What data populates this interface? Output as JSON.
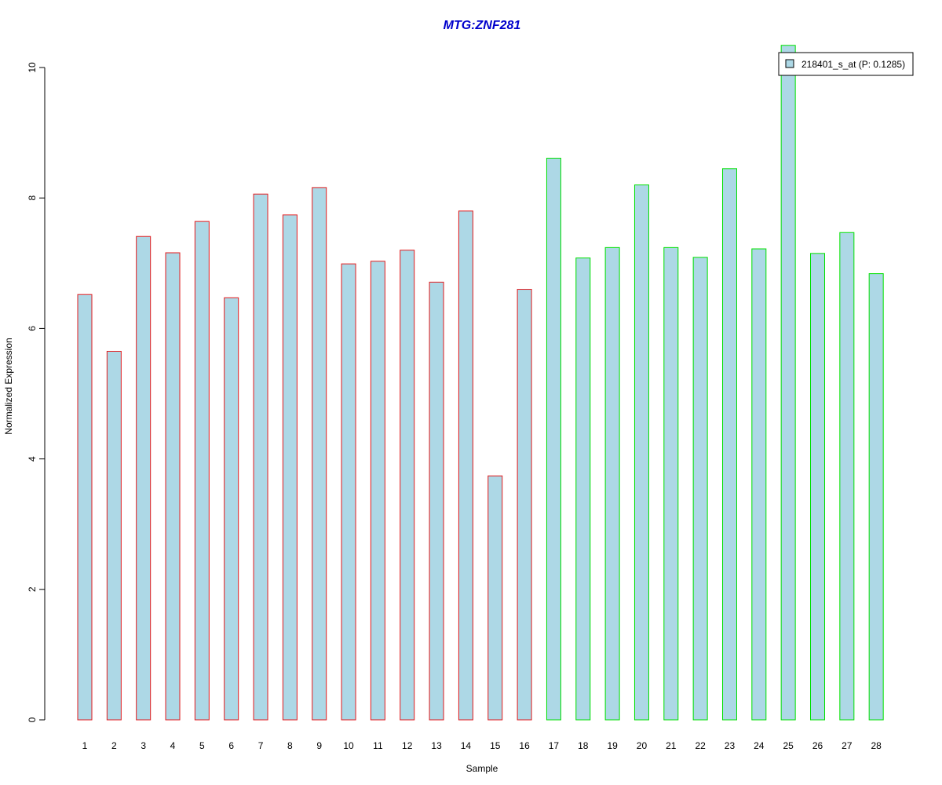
{
  "chart_data": {
    "type": "bar",
    "title": "MTG:ZNF281",
    "xlabel": "Sample",
    "ylabel": "Normalized Expression",
    "ylim": [
      0,
      10
    ],
    "yticks": [
      0,
      2,
      4,
      6,
      8,
      10
    ],
    "categories": [
      "1",
      "2",
      "3",
      "4",
      "5",
      "6",
      "7",
      "8",
      "9",
      "10",
      "11",
      "12",
      "13",
      "14",
      "15",
      "16",
      "17",
      "18",
      "19",
      "20",
      "21",
      "22",
      "23",
      "24",
      "25",
      "26",
      "27",
      "28"
    ],
    "series": [
      {
        "name": "218401_s_at (P: 0.1285)",
        "values": [
          6.52,
          5.65,
          7.41,
          7.16,
          7.64,
          6.47,
          8.06,
          7.74,
          8.16,
          6.99,
          7.03,
          7.2,
          6.71,
          7.8,
          3.74,
          6.6,
          8.61,
          7.08,
          7.24,
          8.2,
          7.24,
          7.09,
          8.45,
          7.22,
          10.34,
          7.15,
          7.47,
          6.84
        ]
      }
    ],
    "groups": [
      {
        "samples": "1-16",
        "border_color": "#e31a1c"
      },
      {
        "samples": "17-28",
        "border_color": "#00e000"
      }
    ],
    "legend": {
      "position": "top-right",
      "label": "218401_s_at (P: 0.1285)"
    },
    "colors": {
      "bar_fill": "#add8e6",
      "group1_border": "#e31a1c",
      "group2_border": "#00e000",
      "title": "#0000cc"
    },
    "grid": false
  }
}
